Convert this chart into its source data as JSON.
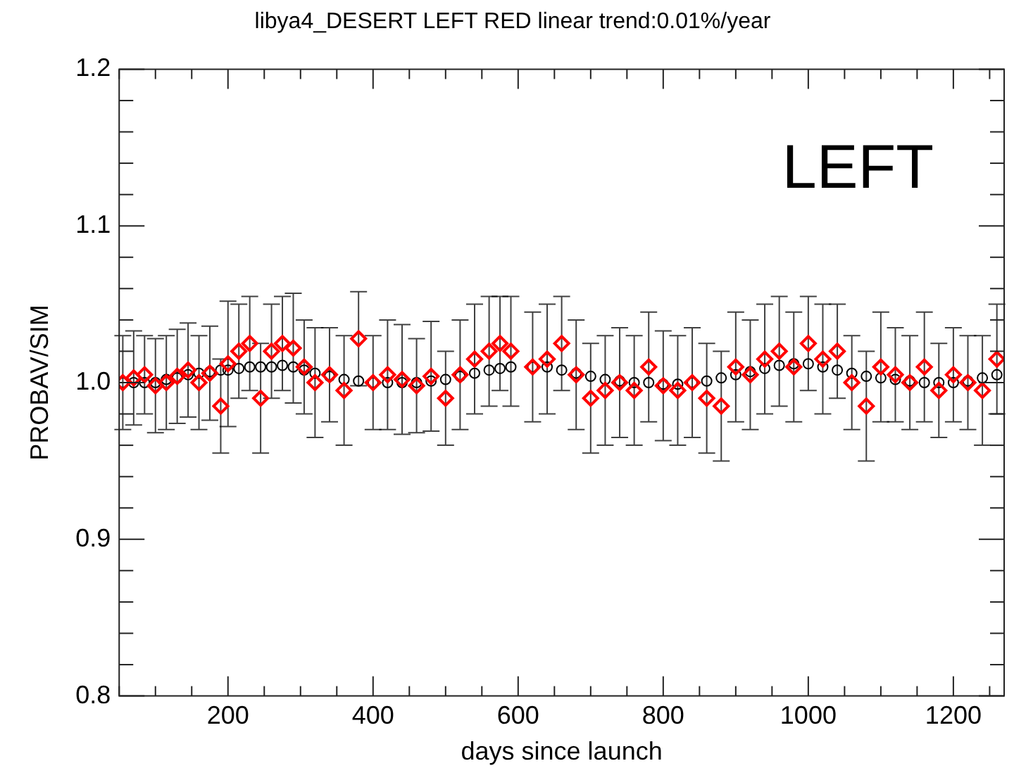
{
  "chart_data": {
    "type": "scatter",
    "title": "libya4_DESERT LEFT RED linear trend:0.01%/year",
    "xlabel": "days since launch",
    "ylabel": "PROBAV/SIM",
    "annotations": [
      "LEFT"
    ],
    "x": [
      55,
      70,
      85,
      100,
      115,
      130,
      145,
      160,
      175,
      190,
      200,
      215,
      230,
      245,
      260,
      275,
      290,
      305,
      320,
      340,
      360,
      380,
      400,
      420,
      440,
      460,
      480,
      500,
      520,
      540,
      560,
      575,
      590,
      620,
      640,
      660,
      680,
      700,
      720,
      740,
      760,
      780,
      800,
      820,
      840,
      860,
      880,
      900,
      920,
      940,
      960,
      980,
      1000,
      1020,
      1040,
      1060,
      1080,
      1100,
      1120,
      1140,
      1160,
      1180,
      1200,
      1220,
      1240,
      1260
    ],
    "series": [
      {
        "color": "#ff0000",
        "marker": "diamond",
        "values": [
          1.0,
          1.003,
          1.005,
          0.998,
          1.0,
          1.004,
          1.008,
          1.0,
          1.006,
          0.985,
          1.012,
          1.02,
          1.025,
          0.99,
          1.02,
          1.025,
          1.022,
          1.01,
          1.0,
          1.005,
          0.995,
          1.028,
          1.0,
          1.005,
          1.002,
          0.998,
          1.004,
          0.99,
          1.005,
          1.015,
          1.02,
          1.025,
          1.02,
          1.01,
          1.015,
          1.025,
          1.005,
          0.99,
          0.995,
          1.0,
          0.995,
          1.01,
          0.998,
          0.995,
          1.0,
          0.99,
          0.985,
          1.01,
          1.005,
          1.015,
          1.02,
          1.01,
          1.025,
          1.015,
          1.02,
          1.0,
          0.985,
          1.01,
          1.005,
          1.0,
          1.01,
          0.995,
          1.005,
          1.0,
          0.995,
          1.015
        ],
        "errors": [
          0.03,
          0.03,
          0.025,
          0.03,
          0.03,
          0.03,
          0.03,
          0.03,
          0.03,
          0.03,
          0.04,
          0.03,
          0.03,
          0.035,
          0.03,
          0.03,
          0.035,
          0.03,
          0.035,
          0.03,
          0.035,
          0.03,
          0.03,
          0.035,
          0.035,
          0.03,
          0.035,
          0.03,
          0.035,
          0.035,
          0.035,
          0.03,
          0.035,
          0.035,
          0.035,
          0.03,
          0.035,
          0.035,
          0.035,
          0.035,
          0.035,
          0.035,
          0.035,
          0.035,
          0.035,
          0.035,
          0.035,
          0.035,
          0.035,
          0.035,
          0.035,
          0.035,
          0.03,
          0.035,
          0.03,
          0.03,
          0.035,
          0.035,
          0.03,
          0.03,
          0.035,
          0.03,
          0.03,
          0.03,
          0.035,
          0.035
        ]
      },
      {
        "color": "#000000",
        "marker": "circle",
        "values": [
          1.0,
          1.0,
          1.0,
          1.0,
          1.002,
          1.003,
          1.005,
          1.006,
          1.007,
          1.008,
          1.008,
          1.009,
          1.01,
          1.01,
          1.01,
          1.011,
          1.01,
          1.008,
          1.006,
          1.004,
          1.002,
          1.001,
          1.0,
          1.0,
          1.0,
          1.0,
          1.001,
          1.002,
          1.004,
          1.006,
          1.008,
          1.009,
          1.01,
          1.01,
          1.01,
          1.008,
          1.006,
          1.004,
          1.002,
          1.001,
          1.0,
          1.0,
          0.999,
          0.999,
          1.0,
          1.001,
          1.003,
          1.005,
          1.007,
          1.009,
          1.011,
          1.012,
          1.012,
          1.01,
          1.008,
          1.006,
          1.004,
          1.003,
          1.002,
          1.001,
          1.0,
          1.0,
          1.0,
          1.001,
          1.003,
          1.005
        ]
      }
    ],
    "xlim": [
      50,
      1270
    ],
    "xticks": [
      {
        "value": 50,
        "label": null
      },
      {
        "value": 100,
        "label": null
      },
      {
        "value": 150,
        "label": null
      },
      200,
      {
        "value": 250,
        "label": null
      },
      {
        "value": 300,
        "label": null
      },
      {
        "value": 350,
        "label": null
      },
      400,
      {
        "value": 450,
        "label": null
      },
      {
        "value": 500,
        "label": null
      },
      {
        "value": 550,
        "label": null
      },
      600,
      {
        "value": 650,
        "label": null
      },
      {
        "value": 700,
        "label": null
      },
      {
        "value": 750,
        "label": null
      },
      800,
      {
        "value": 850,
        "label": null
      },
      {
        "value": 900,
        "label": null
      },
      {
        "value": 950,
        "label": null
      },
      1000,
      {
        "value": 1050,
        "label": null
      },
      {
        "value": 1100,
        "label": null
      },
      {
        "value": 1150,
        "label": null
      },
      1200,
      {
        "value": 1250,
        "label": null
      }
    ],
    "ylim": [
      0.8,
      1.2
    ],
    "yticks": [
      {
        "value": 0.8,
        "label": "0.8"
      },
      {
        "value": 0.82,
        "label": null
      },
      {
        "value": 0.84,
        "label": null
      },
      {
        "value": 0.86,
        "label": null
      },
      {
        "value": 0.88,
        "label": null
      },
      {
        "value": 0.9,
        "label": "0.9"
      },
      {
        "value": 0.92,
        "label": null
      },
      {
        "value": 0.94,
        "label": null
      },
      {
        "value": 0.96,
        "label": null
      },
      {
        "value": 0.98,
        "label": null
      },
      {
        "value": 1.0,
        "label": "1.0"
      },
      {
        "value": 1.02,
        "label": null
      },
      {
        "value": 1.04,
        "label": null
      },
      {
        "value": 1.06,
        "label": null
      },
      {
        "value": 1.08,
        "label": null
      },
      {
        "value": 1.1,
        "label": "1.1"
      },
      {
        "value": 1.12,
        "label": null
      },
      {
        "value": 1.14,
        "label": null
      },
      {
        "value": 1.16,
        "label": null
      },
      {
        "value": 1.18,
        "label": null
      },
      {
        "value": 1.2,
        "label": "1.2"
      }
    ],
    "grid": false,
    "legend": false
  }
}
